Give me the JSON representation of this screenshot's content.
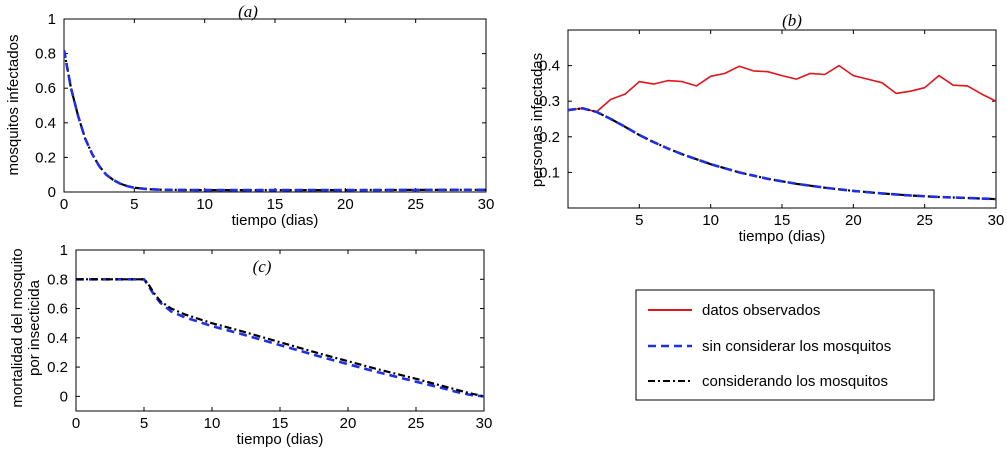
{
  "colors": {
    "observed": "#e0151b",
    "without_mosquitoes": "#1f2fe6",
    "with_mosquitoes": "#000000",
    "axes": "#000000"
  },
  "legend": {
    "placement": "right-middle",
    "entries": [
      "datos observados",
      "sin considerar los mosquitos",
      "considerando los mosquitos"
    ]
  },
  "chart_data": [
    {
      "type": "line",
      "title": "(a)",
      "xlabel": "tiempo (dias)",
      "ylabel": "mosquitos infectados",
      "xlim": [
        0,
        30
      ],
      "ylim": [
        0,
        1
      ],
      "xticks": [
        0,
        5,
        10,
        15,
        20,
        25,
        30
      ],
      "yticks": [
        0,
        0.2,
        0.4,
        0.6,
        0.8,
        1
      ],
      "ytick_labels": [
        "0",
        "0.2",
        "0.4",
        "0.6",
        "0.8",
        "1"
      ],
      "series": [
        {
          "name": "considerando los mosquitos",
          "style": "dashdot",
          "x": [
            0,
            0.5,
            1,
            1.5,
            2,
            2.5,
            3,
            3.5,
            4,
            4.5,
            5,
            6,
            7,
            8,
            10,
            15,
            20,
            25,
            30
          ],
          "y": [
            0.82,
            0.6,
            0.44,
            0.31,
            0.22,
            0.15,
            0.1,
            0.07,
            0.048,
            0.034,
            0.025,
            0.016,
            0.013,
            0.012,
            0.011,
            0.011,
            0.011,
            0.012,
            0.013
          ]
        },
        {
          "name": "sin considerar los mosquitos",
          "style": "dashed",
          "x": [
            0,
            0.5,
            1,
            1.5,
            2,
            2.5,
            3,
            3.5,
            4,
            4.5,
            5,
            6,
            7,
            8,
            10,
            15,
            20,
            25,
            30
          ],
          "y": [
            0.82,
            0.6,
            0.44,
            0.31,
            0.22,
            0.15,
            0.1,
            0.07,
            0.048,
            0.034,
            0.025,
            0.016,
            0.013,
            0.012,
            0.011,
            0.011,
            0.011,
            0.012,
            0.013
          ]
        }
      ]
    },
    {
      "type": "line",
      "title": "(b)",
      "xlabel": "tiempo (dias)",
      "ylabel": "personas infectadas",
      "xlim": [
        0,
        30
      ],
      "ylim": [
        0,
        0.5
      ],
      "xticks": [
        5,
        10,
        15,
        20,
        25,
        30
      ],
      "yticks": [
        0.1,
        0.2,
        0.3,
        0.4
      ],
      "ytick_labels": [
        "0.1",
        "0.2",
        "0.3",
        "0.4"
      ],
      "series": [
        {
          "name": "datos observados",
          "style": "solid",
          "x": [
            0,
            1,
            2,
            3,
            4,
            5,
            6,
            7,
            8,
            9,
            10,
            11,
            12,
            13,
            14,
            15,
            16,
            17,
            18,
            19,
            20,
            21,
            22,
            23,
            24,
            25,
            26,
            27,
            28,
            29,
            30
          ],
          "y": [
            0.275,
            0.28,
            0.27,
            0.305,
            0.32,
            0.355,
            0.348,
            0.358,
            0.355,
            0.343,
            0.37,
            0.378,
            0.398,
            0.385,
            0.383,
            0.372,
            0.362,
            0.378,
            0.375,
            0.4,
            0.372,
            0.362,
            0.352,
            0.322,
            0.328,
            0.338,
            0.372,
            0.345,
            0.343,
            0.32,
            0.3
          ]
        },
        {
          "name": "considerando los mosquitos",
          "style": "dashdot",
          "x": [
            0,
            1,
            2,
            3,
            4,
            5,
            6,
            7,
            8,
            9,
            10,
            12,
            14,
            16,
            18,
            20,
            22,
            24,
            26,
            28,
            30
          ],
          "y": [
            0.275,
            0.28,
            0.27,
            0.25,
            0.228,
            0.205,
            0.185,
            0.167,
            0.151,
            0.137,
            0.123,
            0.1,
            0.082,
            0.068,
            0.057,
            0.048,
            0.041,
            0.035,
            0.031,
            0.028,
            0.025
          ]
        },
        {
          "name": "sin considerar los mosquitos",
          "style": "dashed",
          "x": [
            0,
            1,
            2,
            3,
            4,
            5,
            6,
            7,
            8,
            9,
            10,
            12,
            14,
            16,
            18,
            20,
            22,
            24,
            26,
            28,
            30
          ],
          "y": [
            0.275,
            0.28,
            0.27,
            0.25,
            0.228,
            0.205,
            0.185,
            0.167,
            0.151,
            0.137,
            0.123,
            0.1,
            0.082,
            0.068,
            0.057,
            0.048,
            0.041,
            0.035,
            0.031,
            0.028,
            0.025
          ]
        }
      ]
    },
    {
      "type": "line",
      "title": "(c)",
      "xlabel": "tiempo (dias)",
      "ylabel": "mortalidad del mosquito por insecticida",
      "ylabel_lines": [
        "mortalidad del mosquito",
        "por insecticida"
      ],
      "xlim": [
        0,
        30
      ],
      "ylim": [
        -0.1,
        1
      ],
      "xticks": [
        0,
        5,
        10,
        15,
        20,
        25,
        30
      ],
      "yticks": [
        0,
        0.2,
        0.4,
        0.6,
        0.8,
        1
      ],
      "ytick_labels": [
        "0",
        "0.2",
        "0.4",
        "0.6",
        "0.8",
        "1"
      ],
      "series": [
        {
          "name": "sin considerar los mosquitos",
          "style": "dashed",
          "x": [
            0,
            5,
            5.3,
            5.7,
            6.2,
            7,
            8,
            10,
            12,
            15,
            18,
            20,
            22,
            25,
            27,
            28,
            29,
            30
          ],
          "y": [
            0.8,
            0.8,
            0.76,
            0.7,
            0.64,
            0.58,
            0.54,
            0.48,
            0.43,
            0.35,
            0.27,
            0.22,
            0.17,
            0.1,
            0.055,
            0.03,
            0.01,
            0.0
          ]
        },
        {
          "name": "considerando los mosquitos",
          "style": "dashdot",
          "x": [
            0,
            5,
            5.3,
            5.7,
            6.2,
            7,
            8,
            10,
            12,
            15,
            18,
            20,
            22,
            25,
            27,
            28,
            29,
            30
          ],
          "y": [
            0.8,
            0.8,
            0.77,
            0.71,
            0.65,
            0.6,
            0.56,
            0.5,
            0.45,
            0.37,
            0.29,
            0.24,
            0.19,
            0.12,
            0.07,
            0.045,
            0.02,
            0.0
          ]
        }
      ]
    }
  ]
}
